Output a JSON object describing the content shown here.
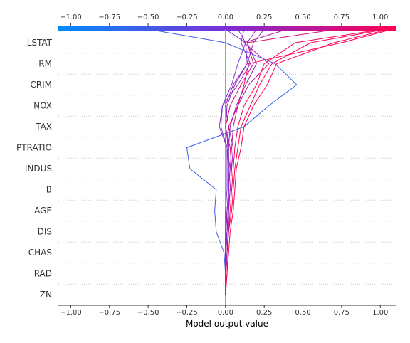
{
  "chart_data": {
    "type": "line",
    "subtype": "shap-decision-plot",
    "xlabel": "Model output value",
    "xlim": [
      -1.08,
      1.1
    ],
    "xticks": [
      -1.0,
      -0.75,
      -0.5,
      -0.25,
      0.0,
      0.25,
      0.5,
      0.75,
      1.0
    ],
    "xtick_labels": [
      "−1.00",
      "−0.75",
      "−0.50",
      "−0.25",
      "0.00",
      "0.25",
      "0.50",
      "0.75",
      "1.00"
    ],
    "base_value": 0.0,
    "features_top_to_bottom": [
      "LSTAT",
      "RM",
      "CRIM",
      "NOX",
      "TAX",
      "PTRATIO",
      "INDUS",
      "B",
      "AGE",
      "DIS",
      "CHAS",
      "RAD",
      "ZN"
    ],
    "colormap": {
      "low": "#008bfb",
      "mid": "#7b2ed6",
      "high": "#ff0052"
    },
    "grid": "dotted horizontal lines at feature rows",
    "series": [
      {
        "values": [
          -0.5,
          0.0,
          0.32,
          0.46,
          0.28,
          0.12,
          -0.25,
          -0.23,
          -0.06,
          -0.07,
          -0.06,
          -0.01,
          0.0,
          0.0
        ]
      },
      {
        "values": [
          1.08,
          0.75,
          0.15,
          0.12,
          0.08,
          0.02,
          0.01,
          0.02,
          0.02,
          0.01,
          0.0,
          0.0,
          0.0,
          0.0
        ]
      },
      {
        "values": [
          1.06,
          0.7,
          0.33,
          0.27,
          0.18,
          0.12,
          0.1,
          0.07,
          0.06,
          0.05,
          0.03,
          0.02,
          0.01,
          0.0
        ]
      },
      {
        "values": [
          1.04,
          0.55,
          0.3,
          0.22,
          0.16,
          0.1,
          0.08,
          0.06,
          0.05,
          0.04,
          0.02,
          0.01,
          0.01,
          0.0
        ]
      },
      {
        "values": [
          1.02,
          0.45,
          0.25,
          0.2,
          0.12,
          0.08,
          0.06,
          0.05,
          0.04,
          0.03,
          0.02,
          0.01,
          0.0,
          0.0
        ]
      },
      {
        "values": [
          0.72,
          0.14,
          0.18,
          0.1,
          0.03,
          0.0,
          0.03,
          0.04,
          0.03,
          0.02,
          0.01,
          0.0,
          0.0,
          0.0
        ]
      },
      {
        "values": [
          0.4,
          0.12,
          0.28,
          0.15,
          0.08,
          0.05,
          0.04,
          0.03,
          0.02,
          0.02,
          0.01,
          0.01,
          0.0,
          0.0
        ]
      },
      {
        "values": [
          0.25,
          0.18,
          0.14,
          0.05,
          0.0,
          0.02,
          0.05,
          0.04,
          0.03,
          0.02,
          0.02,
          0.01,
          0.0,
          0.0
        ]
      },
      {
        "values": [
          0.2,
          0.14,
          0.2,
          0.13,
          0.07,
          0.03,
          0.02,
          0.02,
          0.02,
          0.01,
          0.0,
          0.0,
          0.0,
          0.0
        ]
      },
      {
        "values": [
          0.12,
          0.1,
          0.16,
          0.08,
          -0.02,
          -0.04,
          0.01,
          0.03,
          0.02,
          0.01,
          0.01,
          0.0,
          0.0,
          0.0
        ]
      },
      {
        "values": [
          0.08,
          0.13,
          0.14,
          0.06,
          0.01,
          0.0,
          0.02,
          0.02,
          0.02,
          0.02,
          0.01,
          0.0,
          0.0,
          0.0
        ]
      },
      {
        "values": [
          0.0,
          0.13,
          0.08,
          0.04,
          -0.02,
          -0.03,
          0.01,
          0.01,
          0.01,
          0.0,
          0.0,
          0.0,
          0.0,
          0.0
        ]
      }
    ]
  }
}
